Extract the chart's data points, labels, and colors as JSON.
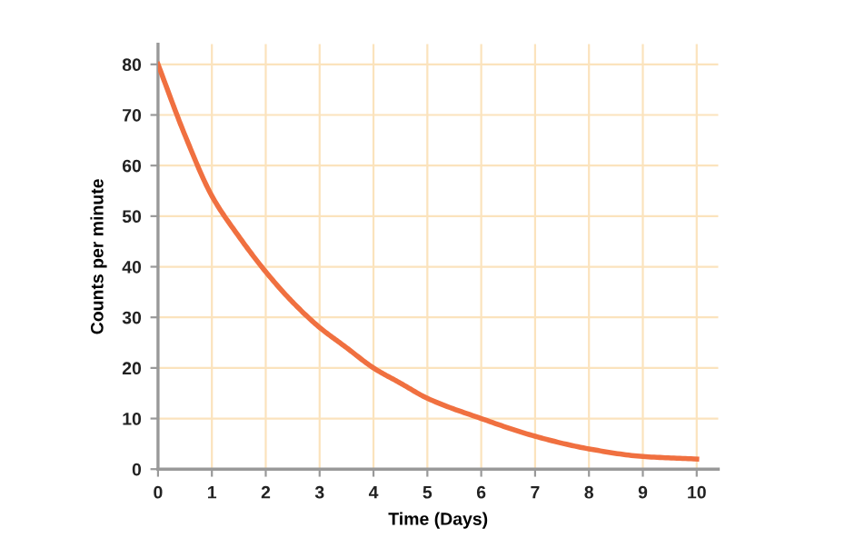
{
  "chart_data": {
    "type": "line",
    "xlabel": "Time (Days)",
    "ylabel": "Counts per minute",
    "x": [
      0,
      0.5,
      1,
      1.5,
      2,
      2.5,
      3,
      3.5,
      4,
      4.5,
      5,
      6,
      7,
      8,
      9,
      10
    ],
    "series": [
      {
        "color": "#f07040",
        "values": [
          80,
          66,
          54,
          46,
          39,
          33,
          28,
          24,
          20,
          17,
          14,
          10,
          6.5,
          4,
          2.5,
          2
        ]
      }
    ],
    "xlim": [
      0,
      10.4
    ],
    "ylim": [
      0,
      84
    ],
    "xticks": [
      0,
      1,
      2,
      3,
      4,
      5,
      6,
      7,
      8,
      9,
      10
    ],
    "yticks": [
      0,
      10,
      20,
      30,
      40,
      50,
      60,
      70,
      80
    ],
    "grid": true,
    "marker": "none",
    "line_style": "solid"
  }
}
